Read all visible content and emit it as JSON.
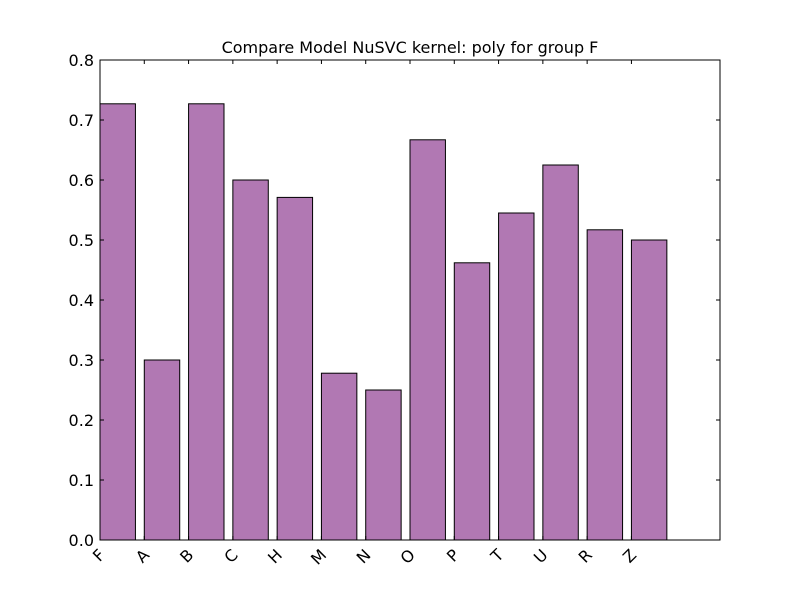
{
  "chart_data": {
    "type": "bar",
    "title": "Compare Model NuSVC kernel: poly for group F",
    "xlabel": "",
    "ylabel": "",
    "categories": [
      "F",
      "A",
      "B",
      "C",
      "H",
      "M",
      "N",
      "O",
      "P",
      "T",
      "U",
      "R",
      "Z"
    ],
    "values": [
      0.727,
      0.3,
      0.727,
      0.6,
      0.571,
      0.278,
      0.25,
      0.667,
      0.462,
      0.545,
      0.625,
      0.517,
      0.5
    ],
    "ylim": [
      0,
      0.8
    ],
    "xlim": [
      0,
      14
    ],
    "yticks": [
      "0.0",
      "0.1",
      "0.2",
      "0.3",
      "0.4",
      "0.5",
      "0.6",
      "0.7",
      "0.8"
    ],
    "bar_color": "#b178b3",
    "edge_color": "#000000",
    "grid": false,
    "legend": "none"
  }
}
